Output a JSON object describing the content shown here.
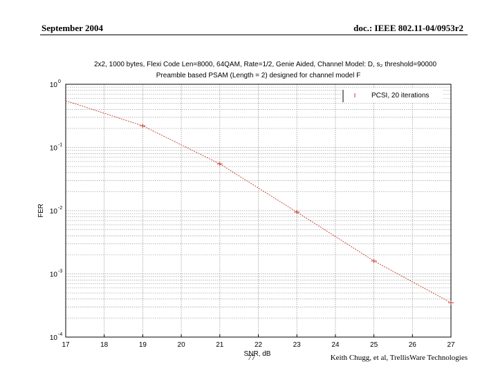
{
  "slide": {
    "header_left": "September 2004",
    "header_right": "doc.: IEEE 802.11-04/0953r2",
    "footer_page": "77",
    "footer_right": "Keith Chugg, et al, TrellisWare Technologies"
  },
  "chart_data": {
    "type": "line",
    "title": "2x2, 1000 bytes, Flexi Code Len=8000, 64QAM, Rate=1/2, Genie Aided, Channel Model: D, s₂ threshold=90000",
    "subtitle": "Preamble based PSAM (Length = 2) designed for channel model F",
    "xlabel": "SNR, dB",
    "ylabel": "FER",
    "xlim": [
      17,
      27
    ],
    "ylim": [
      0.0001,
      1
    ],
    "yscale": "log",
    "grid": true,
    "legend_position": "top-right",
    "x_ticks": [
      "17",
      "18",
      "19",
      "20",
      "21",
      "22",
      "23",
      "24",
      "25",
      "26",
      "27"
    ],
    "y_ticks": [
      {
        "base": "10",
        "exp": "0"
      },
      {
        "base": "10",
        "exp": "-1"
      },
      {
        "base": "10",
        "exp": "-2"
      },
      {
        "base": "10",
        "exp": "-3"
      },
      {
        "base": "10",
        "exp": "-4"
      }
    ],
    "series": [
      {
        "name": "PCSI, 20 iterations",
        "color": "#c0392b",
        "x": [
          17,
          19,
          21,
          23,
          25,
          27
        ],
        "y": [
          0.55,
          0.22,
          0.055,
          0.0095,
          0.0016,
          0.00035
        ]
      }
    ]
  }
}
